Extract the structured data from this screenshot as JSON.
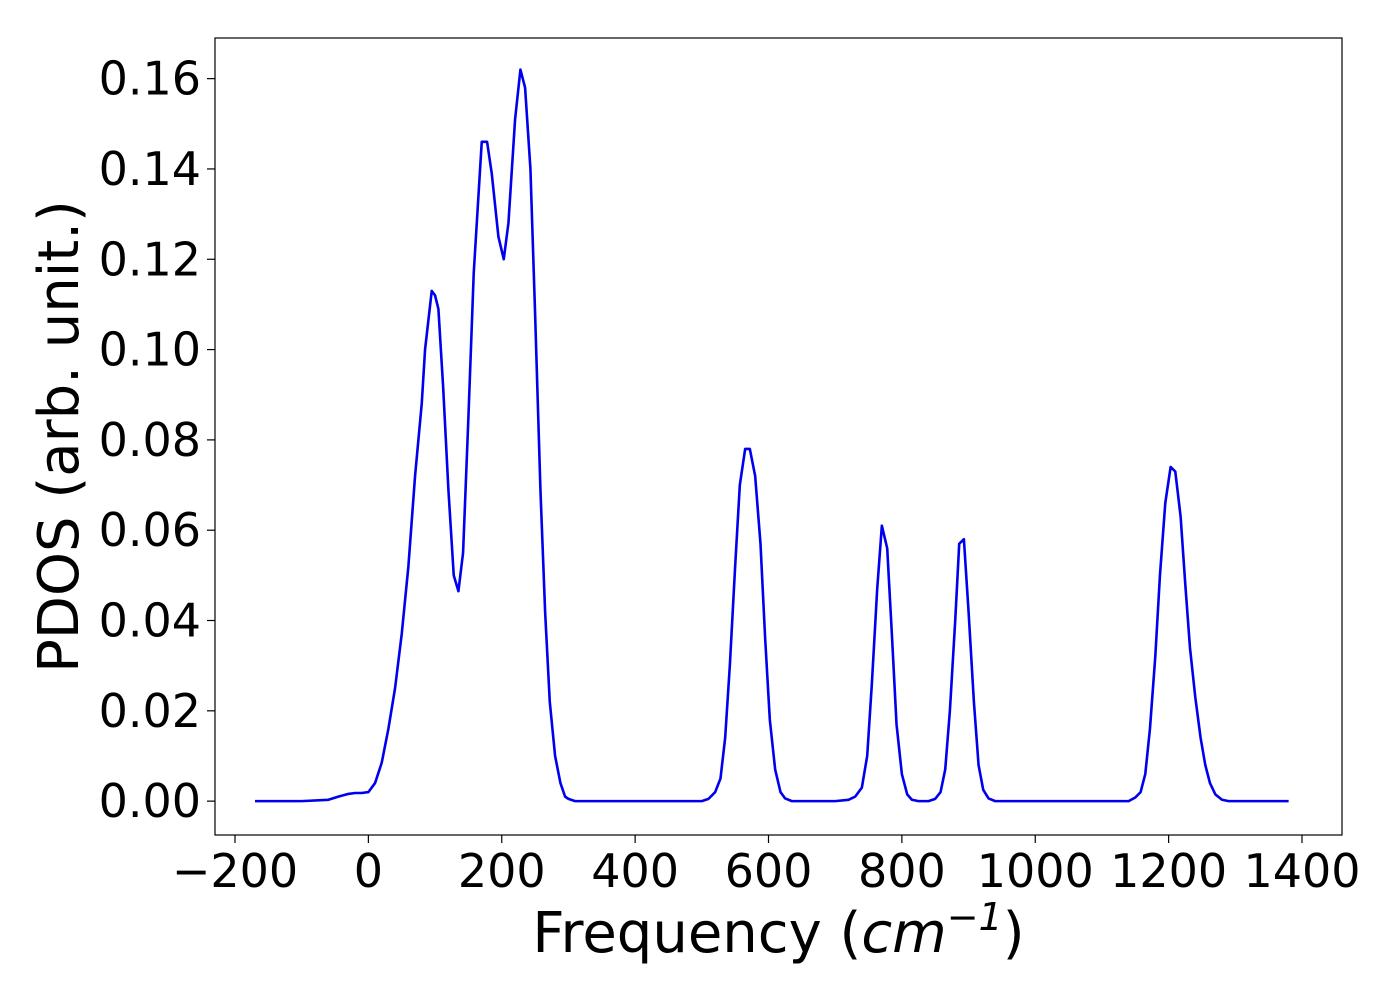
{
  "chart_data": {
    "type": "line",
    "title": "",
    "xlabel": {
      "prefix": "Frequency (",
      "math": "cm",
      "superscript": "−1",
      "suffix": ")"
    },
    "ylabel": "PDOS (arb. unit.)",
    "xlim": [
      -230,
      1460
    ],
    "ylim": [
      -0.0075,
      0.169
    ],
    "x_ticks": [
      -200,
      0,
      200,
      400,
      600,
      800,
      1000,
      1200,
      1400
    ],
    "x_tick_labels": [
      "−200",
      "0",
      "200",
      "400",
      "600",
      "800",
      "1000",
      "1200",
      "1400"
    ],
    "y_ticks": [
      0.0,
      0.02,
      0.04,
      0.06,
      0.08,
      0.1,
      0.12,
      0.14,
      0.16
    ],
    "y_tick_labels": [
      "0.00",
      "0.02",
      "0.04",
      "0.06",
      "0.08",
      "0.10",
      "0.12",
      "0.14",
      "0.16"
    ],
    "grid": false,
    "series_color": "#0000ee",
    "series": [
      {
        "x": [
          -170,
          -100,
          -60,
          -45,
          -30,
          -20,
          -10,
          0,
          10,
          20,
          30,
          40,
          50,
          60,
          70,
          80,
          85,
          95,
          100,
          105,
          112,
          120,
          128,
          135,
          142,
          150,
          158,
          170,
          178,
          185,
          195,
          203,
          210,
          220,
          228,
          235,
          243,
          250,
          258,
          265,
          272,
          280,
          288,
          295,
          300,
          310,
          330,
          400,
          500,
          510,
          520,
          528,
          535,
          542,
          550,
          557,
          565,
          572,
          580,
          588,
          595,
          602,
          610,
          618,
          625,
          635,
          700,
          720,
          730,
          740,
          748,
          755,
          763,
          770,
          778,
          785,
          792,
          800,
          808,
          815,
          825,
          840,
          850,
          858,
          865,
          872,
          880,
          886,
          893,
          900,
          908,
          915,
          922,
          930,
          940,
          1000,
          1140,
          1150,
          1158,
          1165,
          1172,
          1180,
          1187,
          1195,
          1203,
          1210,
          1218,
          1225,
          1232,
          1240,
          1248,
          1255,
          1262,
          1270,
          1280,
          1290,
          1380
        ],
        "y": [
          0.0,
          0.0,
          0.0003,
          0.001,
          0.0016,
          0.0018,
          0.0018,
          0.002,
          0.004,
          0.0085,
          0.016,
          0.025,
          0.037,
          0.052,
          0.072,
          0.088,
          0.1,
          0.113,
          0.112,
          0.109,
          0.092,
          0.069,
          0.05,
          0.0465,
          0.055,
          0.085,
          0.117,
          0.146,
          0.146,
          0.139,
          0.125,
          0.12,
          0.128,
          0.151,
          0.162,
          0.158,
          0.14,
          0.108,
          0.069,
          0.042,
          0.022,
          0.01,
          0.004,
          0.001,
          0.0005,
          0.0,
          0.0,
          0.0,
          0.0,
          0.0005,
          0.002,
          0.005,
          0.014,
          0.03,
          0.052,
          0.07,
          0.078,
          0.078,
          0.072,
          0.057,
          0.036,
          0.018,
          0.007,
          0.002,
          0.0006,
          0.0,
          0.0,
          0.0003,
          0.001,
          0.003,
          0.01,
          0.026,
          0.047,
          0.061,
          0.056,
          0.037,
          0.017,
          0.006,
          0.0015,
          0.0003,
          0.0,
          0.0,
          0.0005,
          0.002,
          0.007,
          0.02,
          0.04,
          0.057,
          0.058,
          0.042,
          0.022,
          0.008,
          0.0025,
          0.0006,
          0.0,
          0.0,
          0.0,
          0.0008,
          0.002,
          0.006,
          0.016,
          0.032,
          0.05,
          0.066,
          0.074,
          0.073,
          0.063,
          0.048,
          0.034,
          0.023,
          0.014,
          0.008,
          0.004,
          0.0015,
          0.0003,
          0.0,
          0.0
        ]
      }
    ]
  }
}
